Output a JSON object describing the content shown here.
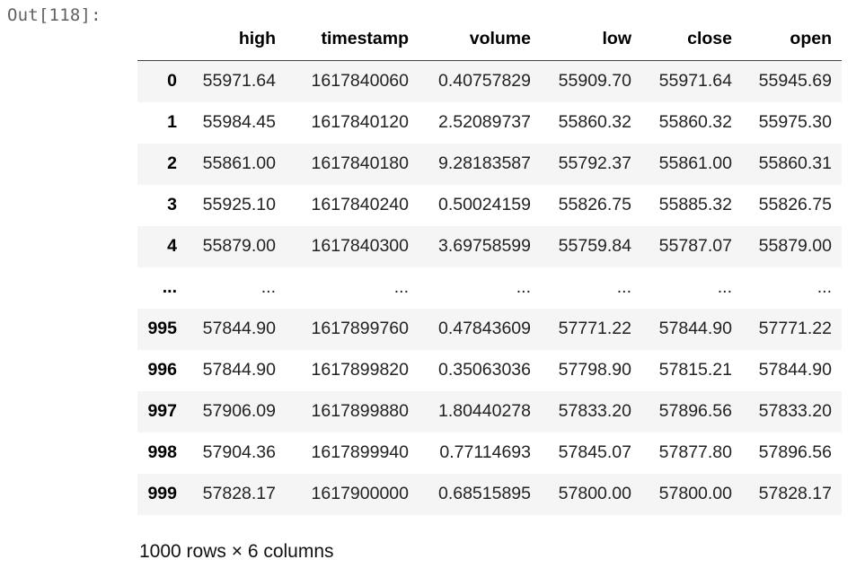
{
  "output": {
    "prompt": "Out[118]:"
  },
  "dataframe": {
    "index_header": "",
    "columns": [
      "high",
      "timestamp",
      "volume",
      "low",
      "close",
      "open"
    ],
    "rows": [
      {
        "index": "0",
        "cells": [
          "55971.64",
          "1617840060",
          "0.40757829",
          "55909.70",
          "55971.64",
          "55945.69"
        ]
      },
      {
        "index": "1",
        "cells": [
          "55984.45",
          "1617840120",
          "2.52089737",
          "55860.32",
          "55860.32",
          "55975.30"
        ]
      },
      {
        "index": "2",
        "cells": [
          "55861.00",
          "1617840180",
          "9.28183587",
          "55792.37",
          "55861.00",
          "55860.31"
        ]
      },
      {
        "index": "3",
        "cells": [
          "55925.10",
          "1617840240",
          "0.50024159",
          "55826.75",
          "55885.32",
          "55826.75"
        ]
      },
      {
        "index": "4",
        "cells": [
          "55879.00",
          "1617840300",
          "3.69758599",
          "55759.84",
          "55787.07",
          "55879.00"
        ]
      },
      {
        "index": "...",
        "cells": [
          "...",
          "...",
          "...",
          "...",
          "...",
          "..."
        ]
      },
      {
        "index": "995",
        "cells": [
          "57844.90",
          "1617899760",
          "0.47843609",
          "57771.22",
          "57844.90",
          "57771.22"
        ]
      },
      {
        "index": "996",
        "cells": [
          "57844.90",
          "1617899820",
          "0.35063036",
          "57798.90",
          "57815.21",
          "57844.90"
        ]
      },
      {
        "index": "997",
        "cells": [
          "57906.09",
          "1617899880",
          "1.80440278",
          "57833.20",
          "57896.56",
          "57833.20"
        ]
      },
      {
        "index": "998",
        "cells": [
          "57904.36",
          "1617899940",
          "0.77114693",
          "57845.07",
          "57877.80",
          "57896.56"
        ]
      },
      {
        "index": "999",
        "cells": [
          "57828.17",
          "1617900000",
          "0.68515895",
          "57800.00",
          "57800.00",
          "57828.17"
        ]
      }
    ],
    "shape_text": "1000 rows × 6 columns"
  },
  "colors": {
    "prompt_text": "#616161",
    "row_stripe": "#f5f5f5",
    "header_border": "#444444"
  }
}
